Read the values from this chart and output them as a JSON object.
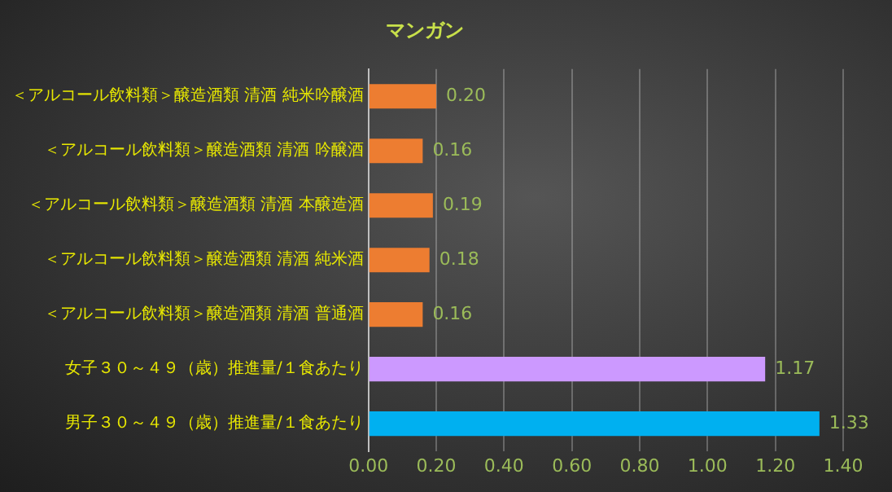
{
  "chart_data": {
    "type": "bar",
    "orientation": "horizontal",
    "title": "マンガン",
    "categories": [
      "＜アルコール飲料類＞醸造酒類 清酒 純米吟醸酒",
      "＜アルコール飲料類＞醸造酒類 清酒 吟醸酒",
      "＜アルコール飲料類＞醸造酒類 清酒 本醸造酒",
      "＜アルコール飲料類＞醸造酒類 清酒 純米酒",
      "＜アルコール飲料類＞醸造酒類 清酒 普通酒",
      "女子３０～４９（歳）推進量/１食あたり",
      "男子３０～４９（歳）推進量/１食あたり"
    ],
    "values": [
      0.2,
      0.16,
      0.19,
      0.18,
      0.16,
      1.17,
      1.33
    ],
    "colors": [
      "#ed7d31",
      "#ed7d31",
      "#ed7d31",
      "#ed7d31",
      "#ed7d31",
      "#cc99ff",
      "#00b0f0"
    ],
    "xlim": [
      0,
      1.4
    ],
    "xticks": [
      {
        "value": 0,
        "label": "0.00"
      },
      {
        "value": 0.2,
        "label": "0.20"
      },
      {
        "value": 0.4,
        "label": "0.40"
      },
      {
        "value": 0.6,
        "label": "0.60"
      },
      {
        "value": 0.8,
        "label": "0.80"
      },
      {
        "value": 1,
        "label": "1.00"
      },
      {
        "value": 1.2,
        "label": "1.20"
      },
      {
        "value": 1.4,
        "label": "1.40"
      }
    ],
    "value_labels": [
      "0.20",
      "0.16",
      "0.19",
      "0.18",
      "0.16",
      "1.17",
      "1.33"
    ],
    "grid": "x",
    "legend": false
  }
}
